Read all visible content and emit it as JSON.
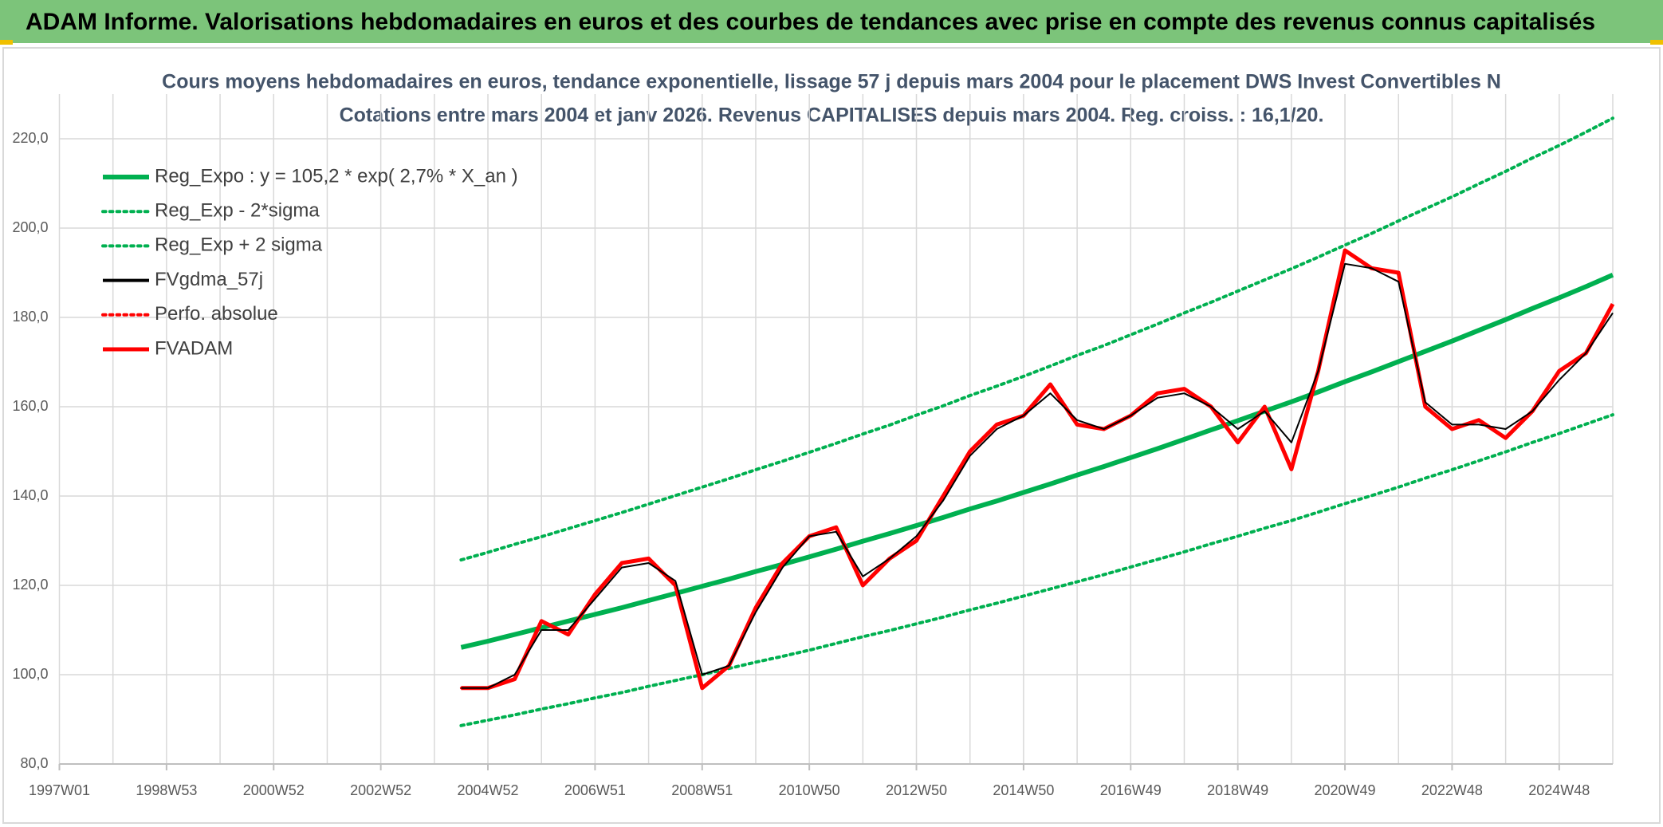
{
  "header": {
    "title": "ADAM Informe. Valorisations hebdomadaires en euros et des courbes de tendances avec prise en compte des revenus connus capitalisés"
  },
  "chart_data": {
    "type": "line",
    "title": "Cours moyens hebdomadaires en euros, tendance exponentielle, lissage 57 j depuis mars 2004 pour le placement DWS Invest Convertibles N",
    "subtitle": "Cotations entre mars 2004 et janv 2026. Revenus CAPITALISES depuis mars 2004. Reg. croiss. : 16,1/20.",
    "categories": [
      "1997W01",
      null,
      null,
      null,
      "1998W53",
      null,
      null,
      null,
      "2000W52",
      null,
      null,
      null,
      "2002W52",
      null,
      null,
      null,
      "2004W52",
      null,
      null,
      null,
      "2006W51",
      null,
      null,
      null,
      "2008W51",
      null,
      null,
      null,
      "2010W50",
      null,
      null,
      null,
      "2012W50",
      null,
      null,
      null,
      "2014W50",
      null,
      null,
      null,
      "2016W49",
      null,
      null,
      null,
      "2018W49",
      null,
      null,
      null,
      "2020W49",
      null,
      null,
      null,
      "2022W48",
      null,
      null,
      null,
      "2024W48",
      null,
      null
    ],
    "ylim": [
      80,
      230
    ],
    "yticks": [
      {
        "value": 80,
        "label": "80,0"
      },
      {
        "value": 100,
        "label": "100,0"
      },
      {
        "value": 120,
        "label": "120,0"
      },
      {
        "value": 140,
        "label": "140,0"
      },
      {
        "value": 160,
        "label": "160,0"
      },
      {
        "value": 180,
        "label": "180,0"
      },
      {
        "value": 200,
        "label": "200,0"
      },
      {
        "value": 220,
        "label": "220,0"
      }
    ],
    "grid": true,
    "legend": "top-left",
    "series": [
      {
        "name": "Reg_Expo : y = 105,2 * exp( 2,7% *  X_an )",
        "color": "#00b050",
        "style": "solid",
        "width": 6,
        "values": [
          null,
          null,
          null,
          null,
          null,
          null,
          null,
          null,
          null,
          null,
          null,
          null,
          null,
          null,
          null,
          106.1,
          107.5,
          109.0,
          110.5,
          112.0,
          113.5,
          115.0,
          116.6,
          118.2,
          119.8,
          121.4,
          123.1,
          124.7,
          126.4,
          128.1,
          129.9,
          131.6,
          133.4,
          135.2,
          137.1,
          138.9,
          140.8,
          142.7,
          144.7,
          146.6,
          148.6,
          150.6,
          152.7,
          154.8,
          156.9,
          159.0,
          161.1,
          163.3,
          165.6,
          167.8,
          170.1,
          172.4,
          174.7,
          177.1,
          179.5,
          182.0,
          184.4,
          186.9,
          189.5
        ]
      },
      {
        "name": "Reg_Exp - 2*sigma",
        "color": "#00b050",
        "style": "dotted",
        "width": 4,
        "values": [
          null,
          null,
          null,
          null,
          null,
          null,
          null,
          null,
          null,
          null,
          null,
          null,
          null,
          null,
          null,
          88.6,
          89.8,
          91.0,
          92.3,
          93.5,
          94.8,
          96.0,
          97.4,
          98.7,
          100.0,
          101.4,
          102.8,
          104.1,
          105.5,
          107.0,
          108.5,
          109.9,
          111.4,
          112.9,
          114.5,
          116.0,
          117.6,
          119.2,
          120.8,
          122.4,
          124.1,
          125.8,
          127.5,
          129.3,
          131.0,
          132.8,
          134.5,
          136.4,
          138.3,
          140.1,
          142.0,
          144.0,
          145.9,
          147.9,
          149.9,
          152.0,
          154.0,
          156.1,
          158.2
        ]
      },
      {
        "name": "Reg_Exp + 2 sigma",
        "color": "#00b050",
        "style": "dotted",
        "width": 4,
        "values": [
          null,
          null,
          null,
          null,
          null,
          null,
          null,
          null,
          null,
          null,
          null,
          null,
          null,
          null,
          null,
          125.7,
          127.4,
          129.2,
          130.9,
          132.7,
          134.5,
          136.3,
          138.2,
          140.1,
          142.0,
          143.9,
          145.9,
          147.8,
          149.8,
          151.8,
          153.9,
          155.9,
          158.1,
          160.2,
          162.5,
          164.6,
          166.8,
          169.1,
          171.5,
          173.7,
          176.1,
          178.5,
          181.0,
          183.4,
          185.9,
          188.4,
          190.9,
          193.5,
          196.2,
          198.8,
          201.6,
          204.3,
          207.0,
          209.9,
          212.7,
          215.7,
          218.5,
          221.5,
          224.6
        ]
      },
      {
        "name": "FVgdma_57j",
        "color": "#000000",
        "style": "solid",
        "width": 2,
        "values": [
          null,
          null,
          null,
          null,
          null,
          null,
          null,
          null,
          null,
          null,
          null,
          null,
          null,
          null,
          null,
          97,
          97,
          100,
          110,
          110,
          117,
          124,
          125,
          121,
          100,
          102,
          114,
          124,
          131,
          132,
          122,
          126,
          131,
          139,
          149,
          155,
          158,
          163,
          157,
          155,
          158,
          162,
          163,
          160,
          155,
          159,
          152,
          168,
          192,
          191,
          188,
          161,
          156,
          156,
          155,
          159,
          166,
          172,
          181
        ]
      },
      {
        "name": "Perfo. absolue",
        "color": "#ff0000",
        "style": "dotted",
        "width": 3,
        "values": [
          null,
          null,
          null,
          null,
          null,
          null,
          null,
          null,
          null,
          null,
          null,
          null,
          null,
          null,
          null,
          97,
          97,
          99,
          112,
          109,
          118,
          125,
          126,
          120,
          97,
          102,
          115,
          125,
          131,
          133,
          120,
          126,
          130,
          140,
          150,
          156,
          158,
          165,
          156,
          155,
          158,
          163,
          164,
          160,
          152,
          160,
          146,
          168,
          195,
          191,
          190,
          160,
          155,
          157,
          153,
          159,
          168,
          172,
          183
        ]
      },
      {
        "name": "FVADAM",
        "color": "#ff0000",
        "style": "solid",
        "width": 5,
        "values": [
          null,
          null,
          null,
          null,
          null,
          null,
          null,
          null,
          null,
          null,
          null,
          null,
          null,
          null,
          null,
          97,
          97,
          99,
          112,
          109,
          118,
          125,
          126,
          120,
          97,
          102,
          115,
          125,
          131,
          133,
          120,
          126,
          130,
          140,
          150,
          156,
          158,
          165,
          156,
          155,
          158,
          163,
          164,
          160,
          152,
          160,
          146,
          168,
          195,
          191,
          190,
          160,
          155,
          157,
          153,
          159,
          168,
          172,
          183
        ]
      }
    ]
  }
}
